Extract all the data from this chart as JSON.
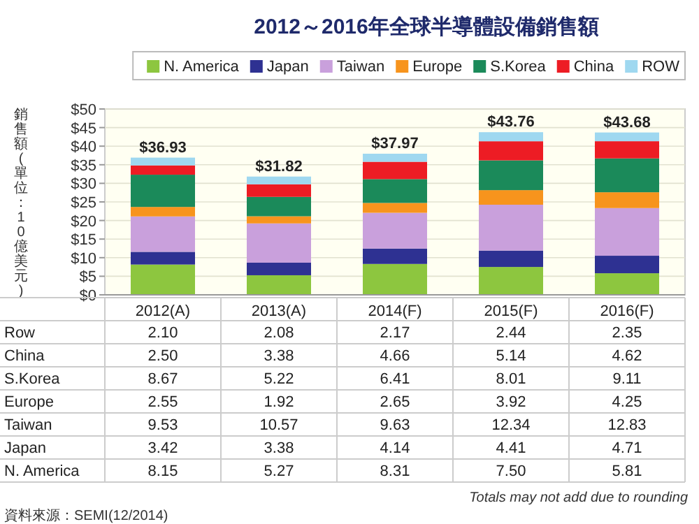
{
  "chart_data": {
    "type": "bar",
    "stacked": true,
    "title": "2012～2016年全球半導體設備銷售額",
    "ylabel": "銷售額(單位：10億美元)",
    "categories": [
      "2012(A)",
      "2013(A)",
      "2014(F)",
      "2015(F)",
      "2016(F)"
    ],
    "series": [
      {
        "name": "N. America",
        "color": "#8dc63f",
        "values": [
          8.15,
          5.27,
          8.31,
          7.5,
          5.81
        ],
        "value_labels": [
          "8.15",
          "5.27",
          "8.31",
          "7.50",
          "5.81"
        ]
      },
      {
        "name": "Japan",
        "color": "#2e3192",
        "values": [
          3.42,
          3.38,
          4.14,
          4.41,
          4.71
        ],
        "value_labels": [
          "3.42",
          "3.38",
          "4.14",
          "4.41",
          "4.71"
        ]
      },
      {
        "name": "Taiwan",
        "color": "#c9a0dc",
        "values": [
          9.53,
          10.57,
          9.63,
          12.34,
          12.83
        ],
        "value_labels": [
          "9.53",
          "10.57",
          "9.63",
          "12.34",
          "12.83"
        ]
      },
      {
        "name": "Europe",
        "color": "#f7941d",
        "values": [
          2.55,
          1.92,
          2.65,
          3.92,
          4.25
        ],
        "value_labels": [
          "2.55",
          "1.92",
          "2.65",
          "3.92",
          "4.25"
        ]
      },
      {
        "name": "S.Korea",
        "color": "#1b8a5a",
        "values": [
          8.67,
          5.22,
          6.41,
          8.01,
          9.11
        ],
        "value_labels": [
          "8.67",
          "5.22",
          "6.41",
          "8.01",
          "9.11"
        ]
      },
      {
        "name": "China",
        "color": "#ed1c24",
        "values": [
          2.5,
          3.38,
          4.66,
          5.14,
          4.62
        ],
        "value_labels": [
          "2.50",
          "3.38",
          "4.66",
          "5.14",
          "4.62"
        ]
      },
      {
        "name": "ROW",
        "color": "#9fd8f0",
        "values": [
          2.1,
          2.08,
          2.17,
          2.44,
          2.35
        ],
        "value_labels": [
          "2.10",
          "2.08",
          "2.17",
          "2.44",
          "2.35"
        ]
      }
    ],
    "totals": [
      "$36.93",
      "$31.82",
      "$37.97",
      "$43.76",
      "$43.68"
    ],
    "ylim": [
      0,
      50
    ],
    "yticks": [
      {
        "value": 0,
        "label": "$0"
      },
      {
        "value": 5,
        "label": "$5"
      },
      {
        "value": 10,
        "label": "$10"
      },
      {
        "value": 15,
        "label": "$15"
      },
      {
        "value": 20,
        "label": "$20"
      },
      {
        "value": 25,
        "label": "$25"
      },
      {
        "value": 30,
        "label": "$30"
      },
      {
        "value": 35,
        "label": "$35"
      },
      {
        "value": 40,
        "label": "$40"
      },
      {
        "value": 45,
        "label": "$45"
      },
      {
        "value": 50,
        "label": "$50"
      }
    ],
    "grid": "y",
    "legend": "top",
    "annotations": [
      "Row",
      "China",
      "S.Korea",
      "Europe",
      "Taiwan",
      "Japan",
      "N. America",
      "Totals may not add due to rounding",
      "資料來源：SEMI(12/2014)"
    ]
  }
}
